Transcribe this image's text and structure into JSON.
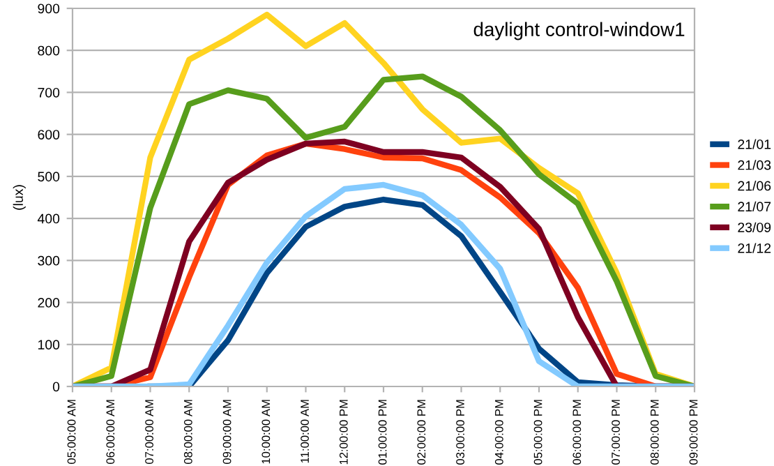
{
  "chart_data": {
    "type": "line",
    "title": "daylight control-window1",
    "ylabel": "(lux)",
    "categories": [
      "05:00:00 AM",
      "06:00:00 AM",
      "07:00:00 AM",
      "08:00:00 AM",
      "09:00:00 AM",
      "10:00:00 AM",
      "11:00:00 AM",
      "12:00:00 PM",
      "01:00:00 PM",
      "02:00:00 PM",
      "03:00:00 PM",
      "04:00:00 PM",
      "05:00:00 PM",
      "06:00:00 PM",
      "07:00:00 PM",
      "08:00:00 PM",
      "09:00:00 PM"
    ],
    "series": [
      {
        "name": "21/01",
        "color": "#004586",
        "values": [
          null,
          null,
          0,
          0,
          110,
          270,
          380,
          428,
          445,
          432,
          358,
          225,
          90,
          10,
          3,
          0,
          0
        ]
      },
      {
        "name": "21/03",
        "color": "#ff420e",
        "values": [
          0,
          0,
          22,
          260,
          480,
          550,
          578,
          565,
          545,
          543,
          515,
          450,
          365,
          235,
          30,
          0,
          0
        ]
      },
      {
        "name": "21/06",
        "color": "#ffd320",
        "values": [
          0,
          45,
          545,
          778,
          828,
          885,
          810,
          865,
          770,
          660,
          580,
          590,
          520,
          460,
          270,
          30,
          0
        ]
      },
      {
        "name": "21/07",
        "color": "#579d1c",
        "values": [
          0,
          25,
          425,
          672,
          705,
          685,
          592,
          618,
          730,
          738,
          690,
          610,
          505,
          435,
          250,
          25,
          0
        ]
      },
      {
        "name": "23/09",
        "color": "#7e0021",
        "values": [
          0,
          0,
          40,
          345,
          485,
          540,
          578,
          583,
          558,
          558,
          545,
          475,
          375,
          165,
          0,
          0,
          0
        ]
      },
      {
        "name": "21/12",
        "color": "#83caff",
        "values": [
          0,
          0,
          0,
          5,
          145,
          295,
          405,
          470,
          480,
          455,
          385,
          280,
          60,
          0,
          0,
          0,
          0
        ]
      }
    ],
    "ylim": [
      0,
      900
    ],
    "yticks": [
      0,
      100,
      200,
      300,
      400,
      500,
      600,
      700,
      800,
      900
    ],
    "grid": "y",
    "legend": "right",
    "marker": "none",
    "line_style": "solid"
  }
}
